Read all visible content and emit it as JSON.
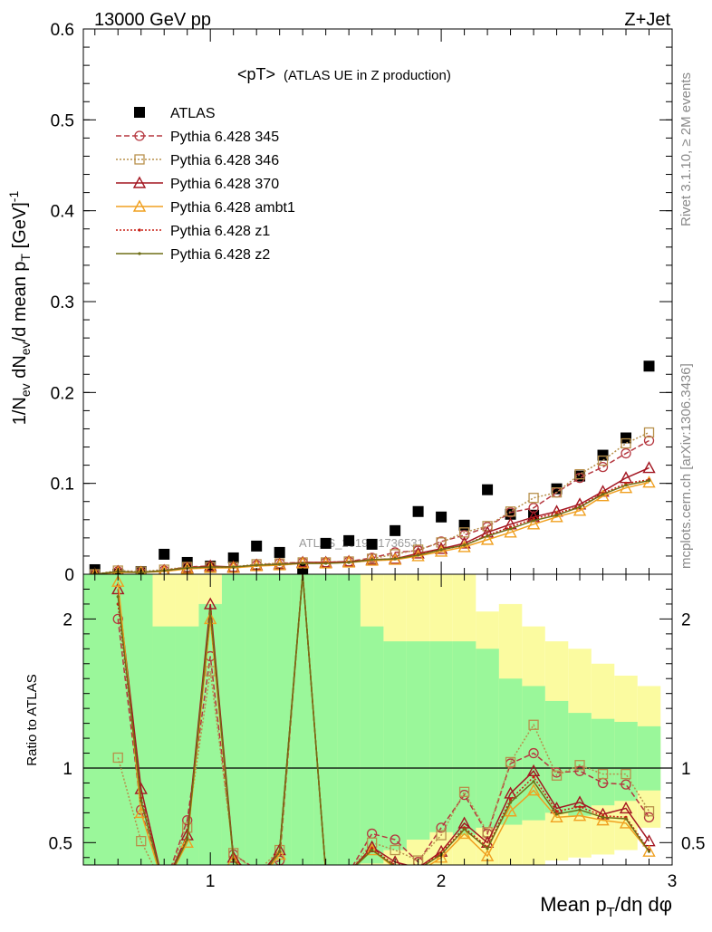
{
  "header": {
    "left": "13000 GeV pp",
    "right": "Z+Jet"
  },
  "side_labels": {
    "top": "Rivet 3.1.10, ≥ 2M events",
    "bottom": "mcplots.cern.ch [arXiv:1306.3436]"
  },
  "watermark": "ATLAS_2019_I1736531",
  "chart_data": [
    {
      "type": "scatter",
      "title": "<pT>",
      "subtitle": "(ATLAS UE in Z production)",
      "ylabel": "1/N_ev dN_ev/d mean p_T [GeV]^-1",
      "xlim": [
        0.45,
        3.0
      ],
      "ylim": [
        0,
        0.6
      ],
      "yticks": [
        0,
        0.1,
        0.2,
        0.3,
        0.4,
        0.5,
        0.6
      ],
      "ytick_labels": [
        "0",
        "0.1",
        "0.2",
        "0.3",
        "0.4",
        "0.5",
        "0.6"
      ],
      "x": [
        0.5,
        0.6,
        0.7,
        0.8,
        0.9,
        1.0,
        1.1,
        1.2,
        1.3,
        1.4,
        1.5,
        1.6,
        1.7,
        1.8,
        1.9,
        2.0,
        2.1,
        2.2,
        2.3,
        2.4,
        2.5,
        2.6,
        2.7,
        2.8,
        2.9
      ],
      "series": [
        {
          "name": "ATLAS",
          "color": "#000000",
          "marker": "square",
          "values": [
            0.005,
            0.0,
            0.003,
            0.022,
            0.013,
            0.009,
            0.018,
            0.031,
            0.024,
            0.005,
            0.034,
            0.037,
            0.033,
            0.048,
            0.069,
            0.063,
            0.054,
            0.093,
            0.066,
            0.065,
            0.094,
            0.108,
            0.131,
            0.15,
            0.229
          ]
        },
        {
          "name": "Pythia 6.428 345",
          "color": "#b5373f",
          "marker": "circle",
          "dash": "6,3",
          "values": [
            0.0,
            0.003,
            0.002,
            0.004,
            0.008,
            0.009,
            0.007,
            0.01,
            0.012,
            0.013,
            0.013,
            0.014,
            0.018,
            0.024,
            0.026,
            0.036,
            0.043,
            0.052,
            0.068,
            0.073,
            0.09,
            0.106,
            0.118,
            0.133,
            0.147
          ]
        },
        {
          "name": "Pythia 6.428 346",
          "color": "#b8904b",
          "marker": "square-open",
          "dash": "2,2",
          "values": [
            0.0,
            0.004,
            0.003,
            0.005,
            0.008,
            0.008,
            0.008,
            0.011,
            0.012,
            0.013,
            0.013,
            0.014,
            0.017,
            0.022,
            0.027,
            0.035,
            0.046,
            0.053,
            0.069,
            0.084,
            0.09,
            0.11,
            0.125,
            0.144,
            0.156
          ]
        },
        {
          "name": "Pythia 6.428 370",
          "color": "#a31621",
          "marker": "triangle",
          "dash": "",
          "values": [
            0.0,
            0.003,
            0.002,
            0.004,
            0.007,
            0.009,
            0.008,
            0.01,
            0.011,
            0.013,
            0.013,
            0.014,
            0.016,
            0.017,
            0.023,
            0.028,
            0.034,
            0.046,
            0.055,
            0.063,
            0.069,
            0.077,
            0.091,
            0.106,
            0.117
          ]
        },
        {
          "name": "Pythia 6.428 ambt1",
          "color": "#f0a020",
          "marker": "triangle-open",
          "dash": "",
          "values": [
            0.0,
            0.002,
            0.002,
            0.003,
            0.006,
            0.007,
            0.007,
            0.009,
            0.01,
            0.012,
            0.012,
            0.013,
            0.015,
            0.016,
            0.02,
            0.025,
            0.03,
            0.038,
            0.046,
            0.055,
            0.063,
            0.07,
            0.086,
            0.095,
            0.101
          ]
        },
        {
          "name": "Pythia 6.428 z1",
          "color": "#c81e14",
          "marker": "dot",
          "dash": "2,2",
          "values": [
            0.0,
            0.003,
            0.002,
            0.004,
            0.007,
            0.008,
            0.008,
            0.01,
            0.011,
            0.012,
            0.013,
            0.013,
            0.016,
            0.017,
            0.022,
            0.027,
            0.032,
            0.043,
            0.052,
            0.061,
            0.067,
            0.075,
            0.089,
            0.1,
            0.104
          ]
        },
        {
          "name": "Pythia 6.428 z2",
          "color": "#6e6e16",
          "marker": "dot",
          "dash": "",
          "values": [
            0.0,
            0.003,
            0.002,
            0.004,
            0.007,
            0.008,
            0.008,
            0.01,
            0.011,
            0.012,
            0.012,
            0.013,
            0.016,
            0.017,
            0.021,
            0.027,
            0.032,
            0.042,
            0.05,
            0.059,
            0.065,
            0.074,
            0.088,
            0.098,
            0.103
          ]
        }
      ]
    },
    {
      "type": "line",
      "ylabel": "Ratio to ATLAS",
      "xlabel": "Mean p_T/dη dφ",
      "xlim": [
        0.45,
        3.0
      ],
      "ylim": [
        0.35,
        2.3
      ],
      "yticks": [
        0.5,
        1,
        2
      ],
      "ytick_labels": [
        "0.5",
        "1",
        "2"
      ],
      "xticks": [
        1,
        2,
        3
      ],
      "xtick_labels": [
        "1",
        "2",
        "3"
      ],
      "reference_line": 1,
      "band_edges": [
        0.45,
        0.55,
        0.65,
        0.75,
        0.85,
        0.95,
        1.05,
        1.15,
        1.25,
        1.35,
        1.45,
        1.55,
        1.65,
        1.75,
        1.85,
        1.95,
        2.05,
        2.15,
        2.25,
        2.35,
        2.45,
        2.55,
        2.65,
        2.75,
        2.85,
        2.95
      ],
      "band_inner_color": "#9af79a",
      "band_outer_color": "#fbfba0",
      "band_inner": [
        [
          0.35,
          2.3
        ],
        [
          0.35,
          2.3
        ],
        [
          0.35,
          2.3
        ],
        [
          0.35,
          1.95
        ],
        [
          0.35,
          1.95
        ],
        [
          0.35,
          2.1
        ],
        [
          0.35,
          2.3
        ],
        [
          0.35,
          2.3
        ],
        [
          0.35,
          2.3
        ],
        [
          0.35,
          2.3
        ],
        [
          0.35,
          2.3
        ],
        [
          0.35,
          2.3
        ],
        [
          0.36,
          1.95
        ],
        [
          0.45,
          1.85
        ],
        [
          0.52,
          1.85
        ],
        [
          0.57,
          1.85
        ],
        [
          0.55,
          1.85
        ],
        [
          0.6,
          1.8
        ],
        [
          0.62,
          1.6
        ],
        [
          0.65,
          1.55
        ],
        [
          0.7,
          1.45
        ],
        [
          0.68,
          1.37
        ],
        [
          0.75,
          1.33
        ],
        [
          0.78,
          1.31
        ],
        [
          0.85,
          1.28
        ]
      ],
      "band_outer": [
        [
          0.35,
          2.3
        ],
        [
          0.35,
          2.3
        ],
        [
          0.35,
          2.3
        ],
        [
          0.35,
          2.3
        ],
        [
          0.35,
          2.3
        ],
        [
          0.35,
          2.3
        ],
        [
          0.35,
          2.3
        ],
        [
          0.35,
          2.3
        ],
        [
          0.35,
          2.3
        ],
        [
          0.35,
          2.3
        ],
        [
          0.35,
          2.3
        ],
        [
          0.35,
          2.3
        ],
        [
          0.35,
          2.3
        ],
        [
          0.35,
          2.3
        ],
        [
          0.35,
          2.3
        ],
        [
          0.35,
          2.3
        ],
        [
          0.35,
          2.3
        ],
        [
          0.35,
          2.05
        ],
        [
          0.35,
          2.1
        ],
        [
          0.35,
          1.95
        ],
        [
          0.38,
          1.85
        ],
        [
          0.4,
          1.8
        ],
        [
          0.42,
          1.7
        ],
        [
          0.45,
          1.62
        ],
        [
          0.6,
          1.55
        ]
      ],
      "series": [
        {
          "name": "Pythia 6.428 345",
          "color": "#b5373f",
          "marker": "circle",
          "dash": "6,3",
          "values": [
            null,
            2.0,
            0.72,
            0.2,
            0.65,
            1.75,
            0.42,
            0.32,
            0.38,
            2.3,
            0.3,
            0.3,
            0.56,
            0.52,
            0.37,
            0.6,
            0.82,
            0.56,
            1.03,
            1.1,
            0.97,
            0.98,
            0.9,
            0.89,
            0.67
          ]
        },
        {
          "name": "Pythia 6.428 346",
          "color": "#b8904b",
          "marker": "square-open",
          "dash": "2,2",
          "values": [
            null,
            1.07,
            0.51,
            0.2,
            0.6,
            1.65,
            0.43,
            0.3,
            0.45,
            2.3,
            0.3,
            0.3,
            0.5,
            0.45,
            0.38,
            0.55,
            0.84,
            0.57,
            1.04,
            1.29,
            0.95,
            1.02,
            0.96,
            0.96,
            0.71
          ]
        },
        {
          "name": "Pythia 6.428 370",
          "color": "#a31621",
          "marker": "triangle",
          "dash": "",
          "values": [
            null,
            2.2,
            0.86,
            0.2,
            0.55,
            2.1,
            0.4,
            0.25,
            0.45,
            2.3,
            0.3,
            0.3,
            0.47,
            0.37,
            0.33,
            0.44,
            0.63,
            0.5,
            0.83,
            0.98,
            0.73,
            0.77,
            0.69,
            0.73,
            0.51
          ]
        },
        {
          "name": "Pythia 6.428 ambt1",
          "color": "#f0a020",
          "marker": "triangle-open",
          "dash": "",
          "values": [
            null,
            2.25,
            0.7,
            0.2,
            0.5,
            2.0,
            0.38,
            0.22,
            0.42,
            2.3,
            0.3,
            0.3,
            0.45,
            0.33,
            0.3,
            0.4,
            0.56,
            0.41,
            0.71,
            0.85,
            0.67,
            0.68,
            0.65,
            0.63,
            0.44
          ]
        },
        {
          "name": "Pythia 6.428 z1",
          "color": "#c81e14",
          "marker": "dot",
          "dash": "2,2",
          "values": [
            null,
            2.1,
            0.8,
            0.2,
            0.53,
            2.05,
            0.39,
            0.24,
            0.44,
            2.3,
            0.3,
            0.3,
            0.46,
            0.35,
            0.32,
            0.43,
            0.6,
            0.47,
            0.79,
            0.94,
            0.71,
            0.74,
            0.68,
            0.67,
            0.45
          ]
        },
        {
          "name": "Pythia 6.428 z2",
          "color": "#6e6e16",
          "marker": "dot",
          "dash": "",
          "values": [
            null,
            2.15,
            0.78,
            0.2,
            0.52,
            2.05,
            0.38,
            0.23,
            0.44,
            2.3,
            0.3,
            0.3,
            0.45,
            0.34,
            0.32,
            0.42,
            0.59,
            0.46,
            0.77,
            0.91,
            0.69,
            0.72,
            0.67,
            0.66,
            0.44
          ]
        }
      ]
    }
  ]
}
